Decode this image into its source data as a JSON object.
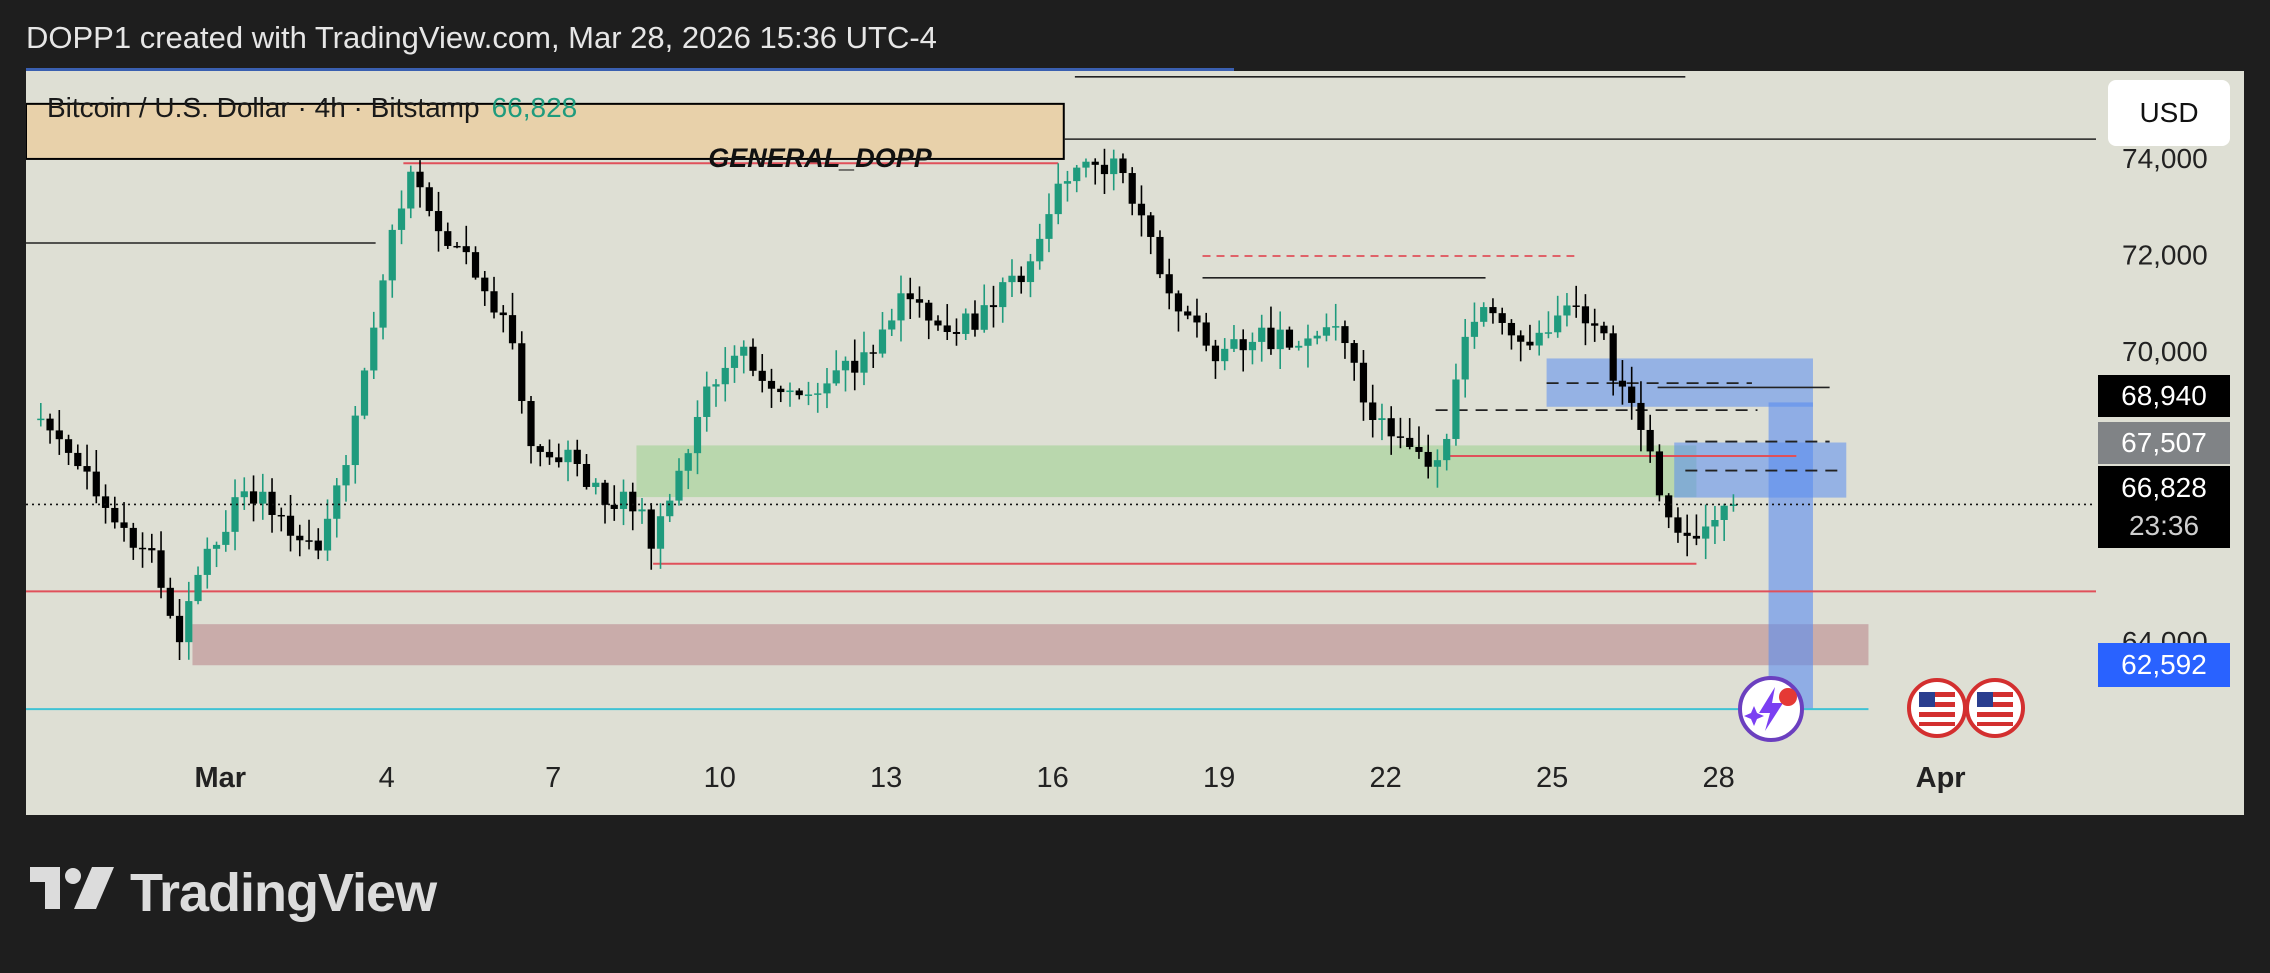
{
  "header": {
    "text": "DOPP1 created with TradingView.com, Mar 28, 2026 15:36 UTC-4"
  },
  "symbol": {
    "title": "Bitcoin / U.S. Dollar · 4h · Bitstamp",
    "last_price": "66,828"
  },
  "currency_label": "USD",
  "zone_label": "GENERAL_DOPP",
  "badges": {
    "level_1": "68,940",
    "level_2": "67,507",
    "last_price": "66,828",
    "countdown": "23:36",
    "level_3": "62,592"
  },
  "brand": {
    "name": "TradingView"
  },
  "colors": {
    "up": "#1f9b7d",
    "down": "#000000",
    "accent_blue": "#2962ff",
    "background": "#dedfd4"
  },
  "icons": [
    "tradingview-logo-icon",
    "lightning-sparkle-icon",
    "us-flag-icon"
  ],
  "chart_data": {
    "type": "candlestick",
    "title": "Bitcoin / U.S. Dollar · 4h · Bitstamp",
    "x_tick_labels": [
      "Mar",
      "4",
      "7",
      "10",
      "13",
      "16",
      "19",
      "22",
      "25",
      "28",
      "Apr"
    ],
    "x_tick_days": [
      1,
      4,
      7,
      10,
      13,
      16,
      19,
      22,
      25,
      28,
      32
    ],
    "y_tick_labels": [
      "74,000",
      "72,000",
      "70,000",
      "64,000"
    ],
    "y_ticks": [
      74000,
      72000,
      70000,
      64000
    ],
    "ylim": [
      60400,
      75800
    ],
    "xlim": [
      -2.5,
      34.8
    ],
    "grid": false,
    "last_price": 66828,
    "close_path": [
      [
        -2.4,
        68600
      ],
      [
        -1.5,
        67600
      ],
      [
        -0.6,
        66200
      ],
      [
        -0.2,
        65700
      ],
      [
        0.2,
        63900
      ],
      [
        0.8,
        66000
      ],
      [
        1.5,
        67200
      ],
      [
        2.2,
        66400
      ],
      [
        2.8,
        65900
      ],
      [
        3.5,
        68900
      ],
      [
        3.9,
        71500
      ],
      [
        4.4,
        73600
      ],
      [
        4.8,
        72800
      ],
      [
        5.4,
        72000
      ],
      [
        6.2,
        70300
      ],
      [
        6.6,
        68200
      ],
      [
        7.3,
        67800
      ],
      [
        7.9,
        67000
      ],
      [
        8.4,
        66900
      ],
      [
        8.8,
        66100
      ],
      [
        9.2,
        67000
      ],
      [
        9.6,
        68700
      ],
      [
        10.3,
        70200
      ],
      [
        10.9,
        69400
      ],
      [
        11.5,
        69000
      ],
      [
        12.1,
        69400
      ],
      [
        12.8,
        70200
      ],
      [
        13.3,
        71200
      ],
      [
        13.8,
        70600
      ],
      [
        14.4,
        70500
      ],
      [
        15.0,
        71100
      ],
      [
        15.6,
        71900
      ],
      [
        16.0,
        73200
      ],
      [
        16.5,
        74000
      ],
      [
        17.3,
        73700
      ],
      [
        17.8,
        72000
      ],
      [
        18.2,
        71000
      ],
      [
        18.9,
        69900
      ],
      [
        19.5,
        70300
      ],
      [
        20.1,
        70200
      ],
      [
        20.7,
        70400
      ],
      [
        21.3,
        70200
      ],
      [
        21.7,
        68700
      ],
      [
        22.2,
        68300
      ],
      [
        22.7,
        67500
      ],
      [
        23.1,
        68200
      ],
      [
        23.4,
        70400
      ],
      [
        24.0,
        70900
      ],
      [
        24.6,
        70000
      ],
      [
        25.3,
        71000
      ],
      [
        25.8,
        70600
      ],
      [
        26.1,
        69600
      ],
      [
        26.6,
        68500
      ],
      [
        27.0,
        66600
      ],
      [
        27.4,
        66000
      ],
      [
        27.8,
        66400
      ],
      [
        28.3,
        66828
      ]
    ],
    "annotations": {
      "supply_zone": {
        "label": "GENERAL_DOPP",
        "low": 73980,
        "high": 75120,
        "x_start": -2.5,
        "x_end": 16.2
      },
      "demand_zone_green": {
        "low": 66980,
        "high": 68050,
        "x_start": 8.5,
        "x_end": 27.6
      },
      "demand_zone_red": {
        "low": 63500,
        "high": 64350,
        "x_start": 0.5,
        "x_end": 30.7
      },
      "blue_zone_upper": {
        "low": 68850,
        "high": 69850,
        "x_start": 24.9,
        "x_end": 29.7
      },
      "blue_zone_mid": {
        "low": 66970,
        "high": 68110,
        "x_start": 27.2,
        "x_end": 30.3
      },
      "blue_vertical_zone": {
        "low": 62592,
        "high": 68940,
        "x_start": 28.9,
        "x_end": 29.7
      },
      "horizontal_levels": [
        {
          "price": 65030,
          "color": "red",
          "x_start": -2.5,
          "x_end": 34.8
        },
        {
          "price": 62592,
          "color": "cyan",
          "x_start": -2.5,
          "x_end": 30.7
        },
        {
          "price": 65600,
          "color": "red",
          "x_start": 8.8,
          "x_end": 27.6
        },
        {
          "price": 74390,
          "color": "black",
          "x_start": 16.2,
          "x_end": 34.8
        },
        {
          "price": 75680,
          "color": "black",
          "x_start": 16.4,
          "x_end": 27.4
        },
        {
          "price": 72240,
          "color": "black",
          "x_start": -2.5,
          "x_end": 3.8
        },
        {
          "price": 71520,
          "color": "black",
          "x_start": 18.7,
          "x_end": 23.8
        },
        {
          "price": 69250,
          "color": "black",
          "x_start": 26.9,
          "x_end": 30.0
        },
        {
          "price": 67830,
          "color": "red",
          "x_start": 23.1,
          "x_end": 29.4
        },
        {
          "price": 73890,
          "color": "red",
          "x_start": 4.3,
          "x_end": 16.1
        }
      ],
      "dashed_levels": [
        {
          "price": 71970,
          "color": "red",
          "x_start": 18.7,
          "x_end": 25.4
        },
        {
          "price": 68780,
          "color": "black",
          "x_start": 22.9,
          "x_end": 28.7
        },
        {
          "price": 69340,
          "color": "black",
          "x_start": 24.9,
          "x_end": 28.6
        },
        {
          "price": 68130,
          "color": "black",
          "x_start": 27.4,
          "x_end": 30.0
        },
        {
          "price": 67530,
          "color": "black",
          "x_start": 27.4,
          "x_end": 30.2
        }
      ]
    }
  }
}
